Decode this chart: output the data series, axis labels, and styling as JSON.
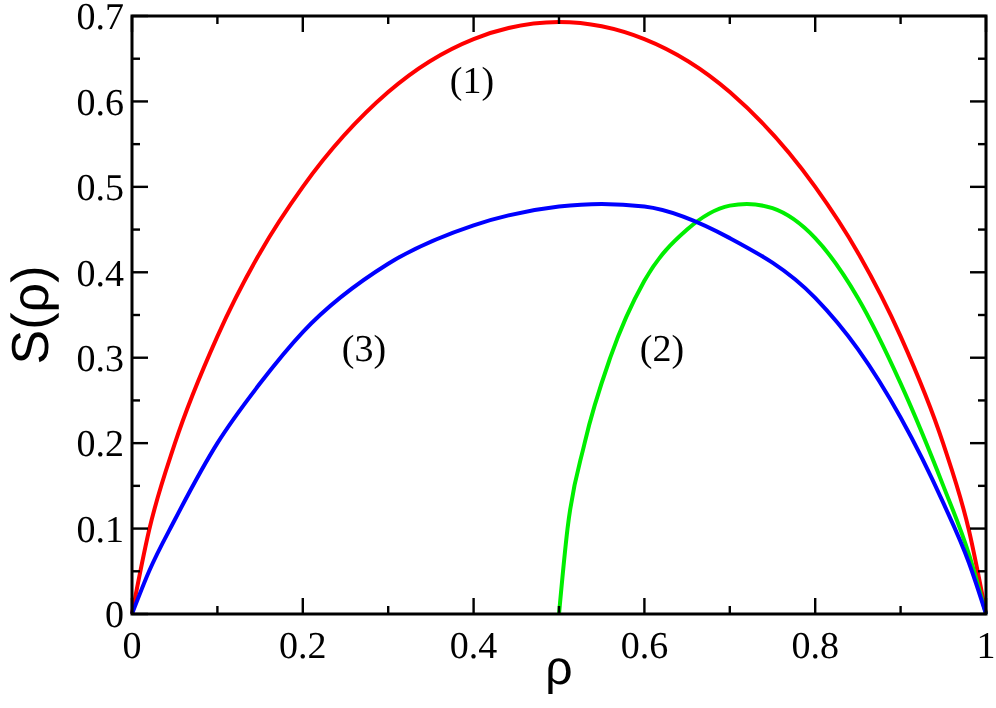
{
  "chart_data": {
    "type": "line",
    "xlabel": "ρ",
    "ylabel": "S(ρ)",
    "xlim": [
      0,
      1
    ],
    "ylim": [
      0,
      0.7
    ],
    "xticks": [
      0,
      {
        "value": 0.1,
        "label": null
      },
      0.2,
      {
        "value": 0.3,
        "label": null
      },
      0.4,
      {
        "value": 0.5,
        "label": null
      },
      0.6,
      {
        "value": 0.7,
        "label": null
      },
      0.8,
      {
        "value": 0.9,
        "label": null
      },
      1
    ],
    "yticks": [
      0,
      {
        "value": 0.05,
        "label": null
      },
      0.1,
      {
        "value": 0.15,
        "label": null
      },
      0.2,
      {
        "value": 0.25,
        "label": null
      },
      0.3,
      {
        "value": 0.35,
        "label": null
      },
      0.4,
      {
        "value": 0.45,
        "label": null
      },
      0.5,
      {
        "value": 0.55,
        "label": null
      },
      0.6,
      {
        "value": 0.65,
        "label": null
      },
      0.7
    ],
    "grid": false,
    "marker": "none",
    "line_style": "solid",
    "series": [
      {
        "name": "(1)",
        "color": "#ff0000",
        "x": [
          0,
          0.02,
          0.05,
          0.1,
          0.15,
          0.2,
          0.3,
          0.4,
          0.5,
          0.6,
          0.7,
          0.8,
          0.85,
          0.9,
          0.95,
          0.98,
          1
        ],
        "values": [
          0,
          0.098,
          0.199,
          0.325,
          0.423,
          0.5,
          0.611,
          0.673,
          0.693,
          0.673,
          0.611,
          0.5,
          0.423,
          0.325,
          0.199,
          0.098,
          0
        ]
      },
      {
        "name": "(2)",
        "color": "#00ee00",
        "x": [
          0.5,
          0.51,
          0.53,
          0.56,
          0.6,
          0.65,
          0.7,
          0.72,
          0.75,
          0.8,
          0.85,
          0.9,
          0.95,
          0.98,
          1
        ],
        "values": [
          0,
          0.1,
          0.2,
          0.3,
          0.39,
          0.45,
          0.478,
          0.48,
          0.475,
          0.44,
          0.37,
          0.27,
          0.15,
          0.07,
          0
        ]
      },
      {
        "name": "(3)",
        "color": "#0000ff",
        "x": [
          0,
          0.02,
          0.05,
          0.1,
          0.15,
          0.2,
          0.3,
          0.4,
          0.5,
          0.55,
          0.6,
          0.7,
          0.8,
          0.85,
          0.9,
          0.95,
          0.98,
          1
        ],
        "values": [
          0,
          0.05,
          0.11,
          0.2,
          0.27,
          0.33,
          0.41,
          0.455,
          0.477,
          0.48,
          0.477,
          0.44,
          0.37,
          0.31,
          0.23,
          0.13,
          0.06,
          0
        ]
      }
    ]
  }
}
